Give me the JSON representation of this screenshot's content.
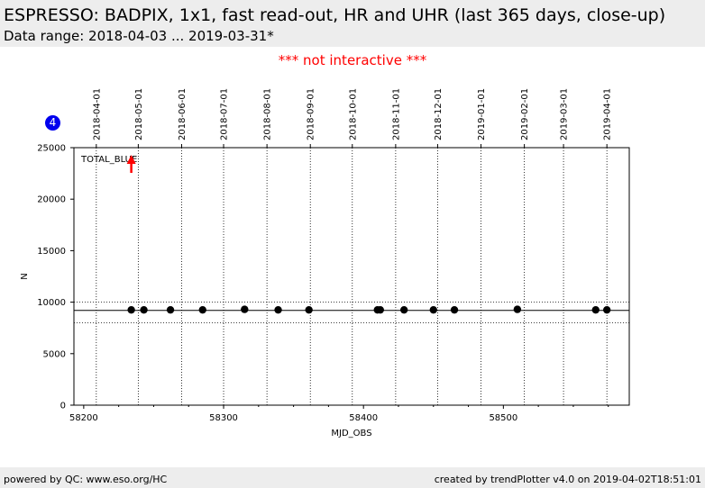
{
  "header": {
    "title": "ESPRESSO: BADPIX, 1x1, fast read-out, HR and UHR (last 365 days, close-up)",
    "subtitle": "Data range: 2018-04-03 ... 2019-03-31*"
  },
  "notice": "*** not interactive ***",
  "badge": "4",
  "footer": {
    "left": "powered by QC: www.eso.org/HC",
    "right": "created by trendPlotter v4.0 on 2019-04-02T18:51:01"
  },
  "chart_data": {
    "type": "scatter",
    "xlabel": "MJD_OBS",
    "ylabel": "N",
    "xlim": [
      58193,
      58590
    ],
    "ylim": [
      0,
      25000
    ],
    "x_ticks": [
      58200,
      58300,
      58400,
      58500
    ],
    "y_ticks": [
      0,
      5000,
      10000,
      15000,
      20000,
      25000
    ],
    "date_ticks": [
      {
        "label": "2018-04-01",
        "mjd": 58209
      },
      {
        "label": "2018-05-01",
        "mjd": 58239
      },
      {
        "label": "2018-06-01",
        "mjd": 58270
      },
      {
        "label": "2018-07-01",
        "mjd": 58300
      },
      {
        "label": "2018-08-01",
        "mjd": 58331
      },
      {
        "label": "2018-09-01",
        "mjd": 58362
      },
      {
        "label": "2018-10-01",
        "mjd": 58392
      },
      {
        "label": "2018-11-01",
        "mjd": 58423
      },
      {
        "label": "2018-12-01",
        "mjd": 58453
      },
      {
        "label": "2019-01-01",
        "mjd": 58484
      },
      {
        "label": "2019-02-01",
        "mjd": 58515
      },
      {
        "label": "2019-03-01",
        "mjd": 58543
      },
      {
        "label": "2019-04-01",
        "mjd": 58574
      }
    ],
    "series_label": "TOTAL_BLUE",
    "reference_line": 9200,
    "limit_lines": [
      8000,
      10000
    ],
    "outlier_arrow_x": 58234,
    "points": [
      {
        "x": 58234,
        "y": 9250
      },
      {
        "x": 58243,
        "y": 9250
      },
      {
        "x": 58262,
        "y": 9250
      },
      {
        "x": 58285,
        "y": 9250
      },
      {
        "x": 58315,
        "y": 9300
      },
      {
        "x": 58339,
        "y": 9250
      },
      {
        "x": 58361,
        "y": 9250
      },
      {
        "x": 58410,
        "y": 9250
      },
      {
        "x": 58412,
        "y": 9250
      },
      {
        "x": 58429,
        "y": 9250
      },
      {
        "x": 58450,
        "y": 9250
      },
      {
        "x": 58465,
        "y": 9250
      },
      {
        "x": 58510,
        "y": 9300
      },
      {
        "x": 58566,
        "y": 9250
      },
      {
        "x": 58574,
        "y": 9250
      }
    ],
    "colors": {
      "points": "#000000",
      "arrow": "#ff0000"
    }
  }
}
